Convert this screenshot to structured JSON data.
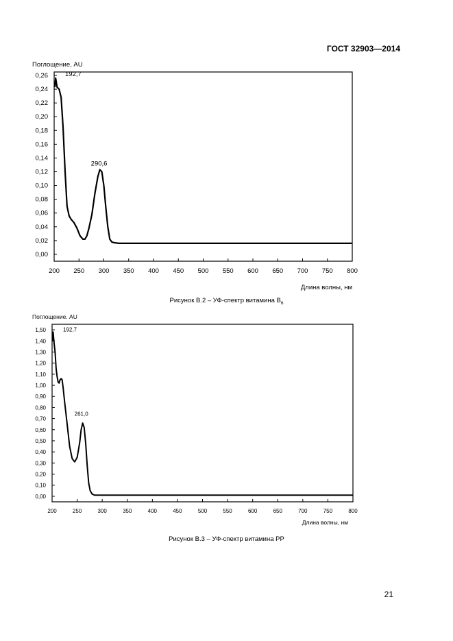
{
  "header": {
    "standard_id": "ГОСТ 32903—2014"
  },
  "page_number": "21",
  "figures": [
    {
      "caption_main": "Рисунок В.2 – УФ-спектр витамина В",
      "caption_sub": "6"
    },
    {
      "caption_main": "Рисунок В.3 – УФ-спектр витамина РР",
      "caption_sub": ""
    }
  ],
  "chart_data": [
    {
      "type": "line",
      "title": "",
      "ylabel": "Поглощение, AU",
      "xlabel": "Длина волны, нм",
      "xlim": [
        200,
        800
      ],
      "ylim": [
        -0.01,
        0.265
      ],
      "x_ticks": [
        200,
        250,
        300,
        350,
        400,
        450,
        500,
        550,
        600,
        650,
        700,
        750,
        800
      ],
      "y_ticks": [
        0.0,
        0.02,
        0.04,
        0.06,
        0.08,
        0.1,
        0.12,
        0.14,
        0.16,
        0.18,
        0.2,
        0.22,
        0.24,
        0.26
      ],
      "y_tick_labels": [
        "0,00",
        "0,02",
        "0,04",
        "0,06",
        "0,08",
        "0,10",
        "0,12",
        "0,14",
        "0,16",
        "0,18",
        "0,20",
        "0,22",
        "0,24",
        "0,26"
      ],
      "x_tick_labels": [
        "200",
        "250",
        "300",
        "350",
        "400",
        "450",
        "500",
        "550",
        "600",
        "650",
        "700",
        "750",
        "800"
      ],
      "grid": false,
      "annotations": [
        {
          "text": "192,7",
          "x": 192.7,
          "y": 0.255
        },
        {
          "text": "290,6",
          "x": 290.6,
          "y": 0.125
        }
      ],
      "series": [
        {
          "x": [
            200,
            203,
            206,
            210,
            214,
            218,
            222,
            226,
            230,
            234,
            240,
            246,
            252,
            258,
            262,
            266,
            270,
            276,
            282,
            288,
            292,
            296,
            300,
            304,
            308,
            312,
            316,
            320,
            330,
            350,
            400,
            500,
            600,
            700,
            800
          ],
          "y": [
            0.243,
            0.256,
            0.243,
            0.24,
            0.228,
            0.185,
            0.12,
            0.07,
            0.056,
            0.051,
            0.046,
            0.038,
            0.027,
            0.022,
            0.022,
            0.027,
            0.038,
            0.058,
            0.088,
            0.113,
            0.123,
            0.12,
            0.1,
            0.068,
            0.04,
            0.022,
            0.018,
            0.017,
            0.016,
            0.016,
            0.016,
            0.016,
            0.016,
            0.016,
            0.016
          ]
        }
      ]
    },
    {
      "type": "line",
      "title": "",
      "ylabel": "Поглощение. AU",
      "xlabel": "Длина волны, нм",
      "xlim": [
        200,
        800
      ],
      "ylim": [
        -0.05,
        1.55
      ],
      "x_ticks": [
        200,
        250,
        300,
        350,
        400,
        450,
        500,
        550,
        600,
        650,
        700,
        750,
        800
      ],
      "y_ticks": [
        0.0,
        0.1,
        0.2,
        0.3,
        0.4,
        0.5,
        0.6,
        0.7,
        0.8,
        0.9,
        1.0,
        1.1,
        1.2,
        1.3,
        1.4,
        1.5
      ],
      "y_tick_labels": [
        "0,00",
        "0,10",
        "0,20",
        "0,30",
        "0,40",
        "0,50",
        "0,60",
        "0,70",
        "0,80",
        "0,90",
        "1,00",
        "1,10",
        "1,20",
        "1,30",
        "1,40",
        "1,50"
      ],
      "x_tick_labels": [
        "200",
        "250",
        "300",
        "350",
        "400",
        "450",
        "500",
        "550",
        "600",
        "650",
        "700",
        "750",
        "800"
      ],
      "grid": false,
      "annotations": [
        {
          "text": "192,7",
          "x": 192.7,
          "y": 1.46
        },
        {
          "text": "261,0",
          "x": 261.0,
          "y": 0.7
        }
      ],
      "series": [
        {
          "x": [
            200,
            202,
            204,
            206,
            208,
            210,
            212,
            214,
            216,
            218,
            220,
            222,
            225,
            230,
            235,
            240,
            245,
            250,
            255,
            258,
            261,
            264,
            267,
            270,
            273,
            276,
            280,
            285,
            290,
            300,
            350,
            400,
            500,
            600,
            700,
            800
          ],
          "y": [
            1.4,
            1.48,
            1.38,
            1.3,
            1.15,
            1.08,
            1.03,
            1.02,
            1.05,
            1.06,
            1.05,
            0.98,
            0.85,
            0.65,
            0.45,
            0.34,
            0.31,
            0.35,
            0.48,
            0.6,
            0.66,
            0.62,
            0.48,
            0.28,
            0.12,
            0.05,
            0.02,
            0.01,
            0.01,
            0.01,
            0.01,
            0.01,
            0.01,
            0.01,
            0.01,
            0.01
          ]
        }
      ]
    }
  ]
}
